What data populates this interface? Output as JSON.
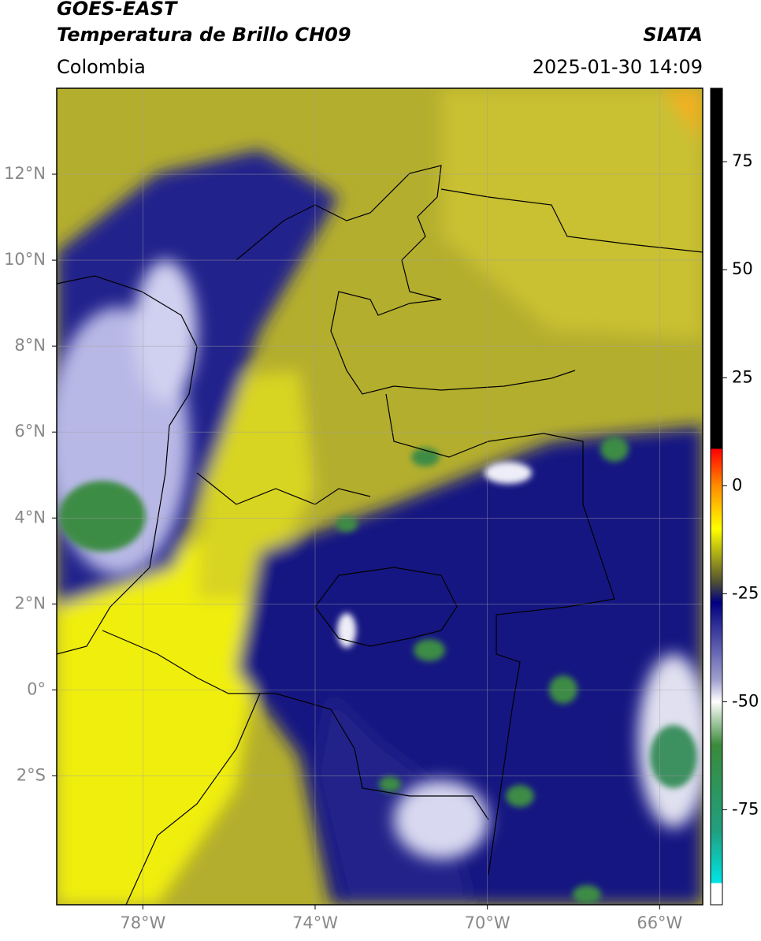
{
  "header": {
    "title": "GOES-EAST",
    "subtitle": "Temperatura de Brillo CH09",
    "source": "SIATA",
    "region": "Colombia",
    "datetime": "2025-01-30 14:09"
  },
  "map": {
    "xlim": [
      -80,
      -65
    ],
    "ylim": [
      -5,
      14
    ],
    "xticks": [
      {
        "value": -78,
        "label": "78°W"
      },
      {
        "value": -74,
        "label": "74°W"
      },
      {
        "value": -70,
        "label": "70°W"
      },
      {
        "value": -66,
        "label": "66°W"
      }
    ],
    "yticks": [
      {
        "value": 12,
        "label": "12°N"
      },
      {
        "value": 10,
        "label": "10°N"
      },
      {
        "value": 8,
        "label": "8°N"
      },
      {
        "value": 6,
        "label": "6°N"
      },
      {
        "value": 4,
        "label": "4°N"
      },
      {
        "value": 2,
        "label": "2°N"
      },
      {
        "value": 0,
        "label": "0°"
      },
      {
        "value": -2,
        "label": "2°S"
      }
    ],
    "grid": true
  },
  "colorbar": {
    "lim": [
      -97,
      92
    ],
    "ticks": [
      75,
      50,
      25,
      0,
      -25,
      -50,
      -75
    ],
    "colormap": [
      {
        "value": 92,
        "color": "#000000"
      },
      {
        "value": 8.5,
        "color": "#000000"
      },
      {
        "value": 8.5,
        "color": "#ff0000"
      },
      {
        "value": 0,
        "color": "#ff8c00"
      },
      {
        "value": -10,
        "color": "#ffff00"
      },
      {
        "value": -22,
        "color": "#555530"
      },
      {
        "value": -27,
        "color": "#000080"
      },
      {
        "value": -45,
        "color": "#a0a0d0"
      },
      {
        "value": -50,
        "color": "#ffffff"
      },
      {
        "value": -60,
        "color": "#3a8a3a"
      },
      {
        "value": -80,
        "color": "#20a080"
      },
      {
        "value": -92,
        "color": "#00e5e5"
      },
      {
        "value": -92,
        "color": "#ffffff"
      },
      {
        "value": -97,
        "color": "#ffffff"
      }
    ]
  }
}
